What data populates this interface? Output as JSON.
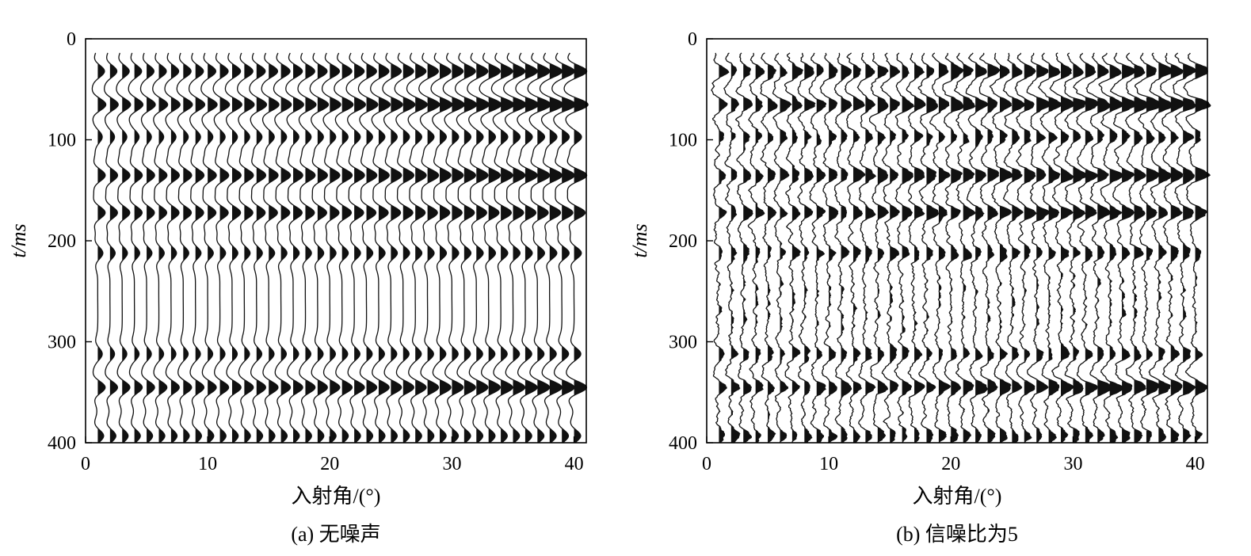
{
  "chart_data": [
    {
      "type": "wiggle",
      "caption": "(a) 无噪声",
      "xlabel": "入射角/(°)",
      "ylabel": "t/ms",
      "xlim": [
        0,
        41
      ],
      "ylim": [
        0,
        400
      ],
      "x_ticks": [
        0,
        10,
        20,
        30,
        40
      ],
      "y_ticks": [
        0,
        100,
        200,
        300,
        400
      ],
      "trace_angles_deg": [
        1,
        2,
        3,
        4,
        5,
        6,
        7,
        8,
        9,
        10,
        11,
        12,
        13,
        14,
        15,
        16,
        17,
        18,
        19,
        20,
        21,
        22,
        23,
        24,
        25,
        26,
        27,
        28,
        29,
        30,
        31,
        32,
        33,
        34,
        35,
        36,
        37,
        38,
        39,
        40
      ],
      "reflection_events": [
        {
          "t_ms": 32,
          "amp_near": 0.45,
          "amp_far": 0.85
        },
        {
          "t_ms": 65,
          "amp_near": 0.55,
          "amp_far": 0.95
        },
        {
          "t_ms": 97,
          "amp_near": 0.3,
          "amp_far": 0.5
        },
        {
          "t_ms": 135,
          "amp_near": 0.5,
          "amp_far": 0.85
        },
        {
          "t_ms": 172,
          "amp_near": 0.5,
          "amp_far": 0.75
        },
        {
          "t_ms": 212,
          "amp_near": 0.35,
          "amp_far": 0.5
        },
        {
          "t_ms": 312,
          "amp_near": 0.3,
          "amp_far": 0.45
        },
        {
          "t_ms": 345,
          "amp_near": 0.5,
          "amp_far": 0.85
        },
        {
          "t_ms": 393,
          "amp_near": 0.4,
          "amp_far": 0.45
        }
      ],
      "noise_level": 0
    },
    {
      "type": "wiggle",
      "caption": "(b) 信噪比为5",
      "xlabel": "入射角/(°)",
      "ylabel": "t/ms",
      "xlim": [
        0,
        41
      ],
      "ylim": [
        0,
        400
      ],
      "x_ticks": [
        0,
        10,
        20,
        30,
        40
      ],
      "y_ticks": [
        0,
        100,
        200,
        300,
        400
      ],
      "trace_angles_deg": [
        1,
        2,
        3,
        4,
        5,
        6,
        7,
        8,
        9,
        10,
        11,
        12,
        13,
        14,
        15,
        16,
        17,
        18,
        19,
        20,
        21,
        22,
        23,
        24,
        25,
        26,
        27,
        28,
        29,
        30,
        31,
        32,
        33,
        34,
        35,
        36,
        37,
        38,
        39,
        40
      ],
      "reflection_events": [
        {
          "t_ms": 32,
          "amp_near": 0.45,
          "amp_far": 0.85
        },
        {
          "t_ms": 65,
          "amp_near": 0.55,
          "amp_far": 0.95
        },
        {
          "t_ms": 97,
          "amp_near": 0.3,
          "amp_far": 0.5
        },
        {
          "t_ms": 135,
          "amp_near": 0.5,
          "amp_far": 0.85
        },
        {
          "t_ms": 172,
          "amp_near": 0.5,
          "amp_far": 0.75
        },
        {
          "t_ms": 212,
          "amp_near": 0.35,
          "amp_far": 0.5
        },
        {
          "t_ms": 312,
          "amp_near": 0.3,
          "amp_far": 0.45
        },
        {
          "t_ms": 345,
          "amp_near": 0.5,
          "amp_far": 0.85
        },
        {
          "t_ms": 393,
          "amp_near": 0.4,
          "amp_far": 0.45
        }
      ],
      "noise_level": 0.2
    }
  ]
}
